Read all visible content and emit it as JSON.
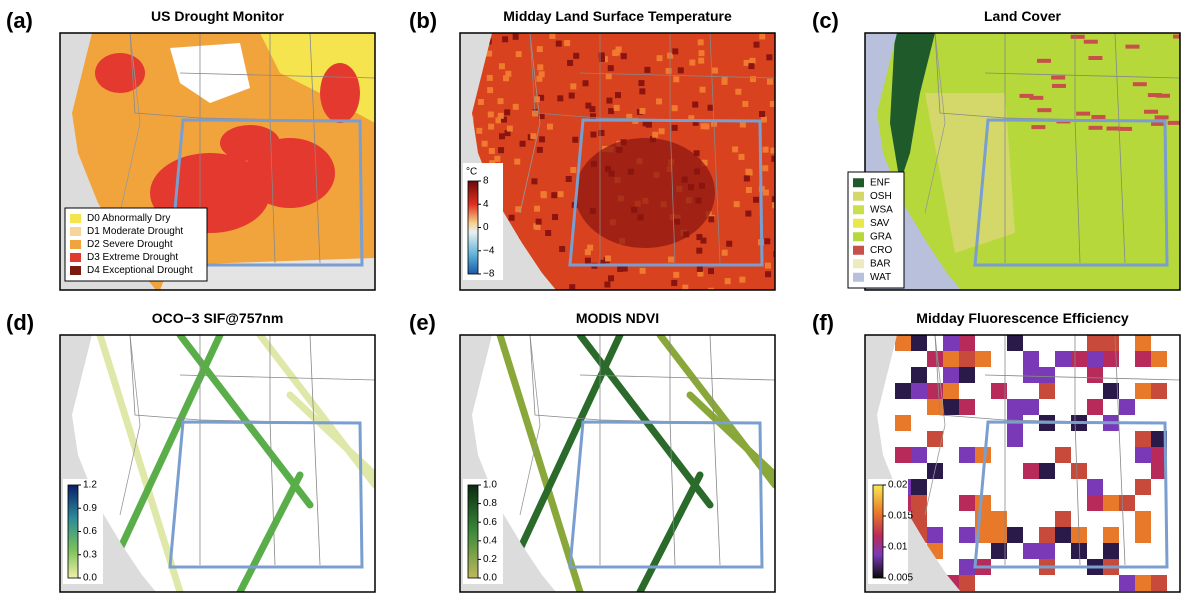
{
  "panels": [
    {
      "letter": "(a)",
      "title": "US Drought Monitor",
      "legend": [
        {
          "label": "D0 Abnormally Dry",
          "color": "#f6e44f"
        },
        {
          "label": "D1 Moderate Drought",
          "color": "#f7d59a"
        },
        {
          "label": "D2 Severe Drought",
          "color": "#f2a43c"
        },
        {
          "label": "D3 Extreme Drought",
          "color": "#e3392f"
        },
        {
          "label": "D4 Exceptional Drought",
          "color": "#7a1a10"
        }
      ]
    },
    {
      "letter": "(b)",
      "title": "Midday Land Surface Temperature",
      "colorbar_unit": "°C",
      "colorbar": [
        "8",
        "4",
        "0",
        "−4",
        "−8"
      ]
    },
    {
      "letter": "(c)",
      "title": "Land Cover",
      "legend": [
        {
          "label": "ENF",
          "color": "#1e5a2a"
        },
        {
          "label": "OSH",
          "color": "#d4d86a"
        },
        {
          "label": "WSA",
          "color": "#c9e04a"
        },
        {
          "label": "SAV",
          "color": "#e8e84a"
        },
        {
          "label": "GRA",
          "color": "#b6d83a"
        },
        {
          "label": "CRO",
          "color": "#c8504a"
        },
        {
          "label": "BAR",
          "color": "#ecebc0"
        },
        {
          "label": "WAT",
          "color": "#b8c0dc"
        }
      ]
    },
    {
      "letter": "(d)",
      "title": "OCO−3 SIF@757nm",
      "colorbar": [
        "1.2",
        "0.9",
        "0.6",
        "0.3",
        "0.0"
      ]
    },
    {
      "letter": "(e)",
      "title": "MODIS NDVI",
      "colorbar": [
        "1.0",
        "0.8",
        "0.6",
        "0.4",
        "0.2",
        "0.0"
      ]
    },
    {
      "letter": "(f)",
      "title": "Midday Fluorescence Efficiency",
      "colorbar": [
        "0.02",
        "0.015",
        "0.01",
        "0.005"
      ]
    }
  ]
}
